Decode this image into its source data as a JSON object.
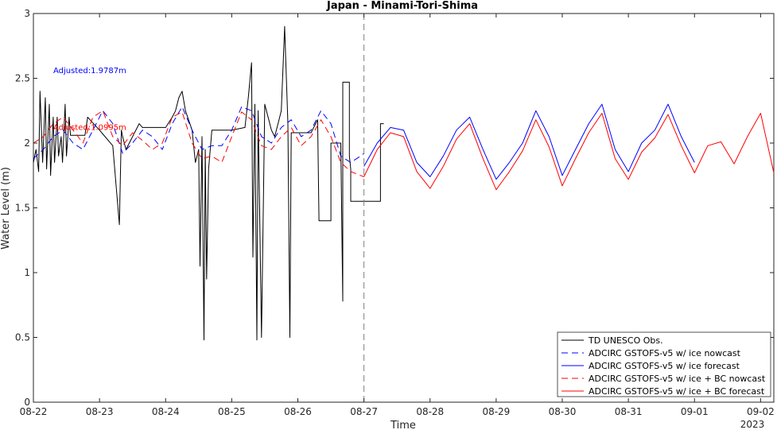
{
  "chart_data": {
    "type": "line",
    "title": "Japan - Minami-Tori-Shima",
    "xlabel": "Time",
    "ylabel": "Water Level (m)",
    "xlim": [
      0,
      11.2
    ],
    "ylim": [
      0,
      3
    ],
    "x_ticks": [
      {
        "x": 0,
        "label": "08-22"
      },
      {
        "x": 1,
        "label": "08-23"
      },
      {
        "x": 2,
        "label": "08-24"
      },
      {
        "x": 3,
        "label": "08-25"
      },
      {
        "x": 4,
        "label": "08-26"
      },
      {
        "x": 5,
        "label": "08-27"
      },
      {
        "x": 6,
        "label": "08-28"
      },
      {
        "x": 7,
        "label": "08-29"
      },
      {
        "x": 8,
        "label": "08-30"
      },
      {
        "x": 9,
        "label": "08-31"
      },
      {
        "x": 10,
        "label": "09-01"
      },
      {
        "x": 11,
        "label": "09-02"
      }
    ],
    "x_year_label": "2023",
    "y_ticks": [
      {
        "y": 0,
        "label": "0"
      },
      {
        "y": 0.5,
        "label": "0.5"
      },
      {
        "y": 1,
        "label": "1"
      },
      {
        "y": 1.5,
        "label": "1.5"
      },
      {
        "y": 2,
        "label": "2"
      },
      {
        "y": 2.5,
        "label": "2.5"
      },
      {
        "y": 3,
        "label": "3"
      }
    ],
    "nowcast_divider_x": 5,
    "annotations": [
      {
        "text": "Adjusted:1.9787m",
        "x": 0.3,
        "y": 2.54,
        "color": "#0000ff"
      },
      {
        "text": "Adjusted:1.0995m",
        "x": 0.3,
        "y": 2.1,
        "color": "#ff0000"
      }
    ],
    "legend_position": "bottom-right",
    "series": [
      {
        "name": "TD UNESCO Obs.",
        "color": "#000000",
        "dash": "solid",
        "x": [
          0,
          0.04,
          0.08,
          0.1,
          0.14,
          0.18,
          0.2,
          0.24,
          0.26,
          0.3,
          0.32,
          0.36,
          0.38,
          0.42,
          0.44,
          0.48,
          0.5,
          0.54,
          0.56,
          0.6,
          0.62,
          0.66,
          0.7,
          0.74,
          0.78,
          0.82,
          1.0,
          1.2,
          1.3,
          1.33,
          1.35,
          1.4,
          1.5,
          1.6,
          1.65,
          1.7,
          1.75,
          1.8,
          2.0,
          2.1,
          2.15,
          2.2,
          2.25,
          2.3,
          2.4,
          2.45,
          2.5,
          2.52,
          2.55,
          2.58,
          2.6,
          2.62,
          2.65,
          2.7,
          2.72,
          2.75,
          2.8,
          2.8,
          3.0,
          3.2,
          3.25,
          3.3,
          3.32,
          3.35,
          3.38,
          3.4,
          3.45,
          3.5,
          3.55,
          3.6,
          3.65,
          3.7,
          3.75,
          3.8,
          3.85,
          3.88,
          3.9,
          3.92,
          3.95,
          4.0,
          4.1,
          4.2,
          4.3,
          4.32,
          4.35,
          4.5,
          4.5,
          4.65,
          4.68,
          4.68,
          4.78,
          4.78,
          4.8,
          4.8,
          4.82,
          4.85,
          5.25,
          5.25,
          5.3
        ],
        "y": [
          1.85,
          1.95,
          1.78,
          2.4,
          1.85,
          2.35,
          1.8,
          2.3,
          1.75,
          2.2,
          1.85,
          2.2,
          1.9,
          2.05,
          1.85,
          2.3,
          1.9,
          2.2,
          2.06,
          2.06,
          2.06,
          2.06,
          2.06,
          2.06,
          2.06,
          2.2,
          2.1,
          1.98,
          1.37,
          2.1,
          2.05,
          1.95,
          2.05,
          2.15,
          2.12,
          2.12,
          2.12,
          2.12,
          2.12,
          2.2,
          2.25,
          2.35,
          2.4,
          2.25,
          2.1,
          1.85,
          1.95,
          1.05,
          2.05,
          0.48,
          1.95,
          0.95,
          1.8,
          2.1,
          2.1,
          2.1,
          2.1,
          2.1,
          2.1,
          2.12,
          2.35,
          2.62,
          1.12,
          2.3,
          0.48,
          2.25,
          0.5,
          2.3,
          2.2,
          2.1,
          2.05,
          2.15,
          2.25,
          2.9,
          2.15,
          0.5,
          2.08,
          2.08,
          2.08,
          2.08,
          2.08,
          2.08,
          2.18,
          1.4,
          1.4,
          1.4,
          2.0,
          2.0,
          0.78,
          2.47,
          2.47,
          1.9,
          1.8,
          1.55,
          1.55,
          1.55,
          1.55,
          2.15,
          2.15
        ]
      },
      {
        "name": "ADCIRC GSTOFS-v5 w/ ice nowcast",
        "color": "#0000ff",
        "dash": "8,5",
        "x": [
          0,
          0.15,
          0.3,
          0.45,
          0.6,
          0.75,
          0.9,
          1.05,
          1.2,
          1.35,
          1.5,
          1.65,
          1.8,
          1.95,
          2.1,
          2.25,
          2.4,
          2.55,
          2.7,
          2.85,
          3.0,
          3.15,
          3.3,
          3.45,
          3.6,
          3.75,
          3.9,
          4.05,
          4.2,
          4.35,
          4.5,
          4.65,
          4.8,
          4.95,
          5.0
        ],
        "y": [
          1.88,
          1.95,
          2.05,
          2.1,
          2.0,
          1.95,
          2.1,
          2.25,
          2.15,
          1.92,
          2.0,
          2.1,
          2.05,
          1.95,
          2.15,
          2.28,
          2.1,
          1.95,
          1.98,
          1.98,
          2.1,
          2.28,
          2.25,
          2.05,
          2.0,
          2.12,
          2.18,
          2.05,
          2.1,
          2.25,
          2.15,
          1.9,
          1.85,
          1.9,
          1.92
        ]
      },
      {
        "name": "ADCIRC GSTOFS-v5 w/ ice forecast",
        "color": "#0000ff",
        "dash": "solid",
        "x": [
          5.0,
          5.2,
          5.4,
          5.6,
          5.8,
          6.0,
          6.2,
          6.4,
          6.6,
          6.8,
          7.0,
          7.2,
          7.4,
          7.6,
          7.8,
          8.0,
          8.2,
          8.4,
          8.6,
          8.8,
          9.0,
          9.2,
          9.4,
          9.6,
          9.8,
          10.0
        ],
        "y": [
          1.82,
          2.0,
          2.12,
          2.1,
          1.85,
          1.74,
          1.9,
          2.1,
          2.2,
          1.95,
          1.72,
          1.85,
          2.0,
          2.25,
          2.05,
          1.75,
          1.95,
          2.15,
          2.3,
          1.95,
          1.78,
          2.0,
          2.1,
          2.3,
          2.05,
          1.85
        ]
      },
      {
        "name": "ADCIRC GSTOFS-v5 w/ ice + BC nowcast",
        "color": "#ff0000",
        "dash": "8,5",
        "x": [
          0,
          0.15,
          0.3,
          0.45,
          0.6,
          0.75,
          0.9,
          1.05,
          1.2,
          1.35,
          1.5,
          1.65,
          1.8,
          1.95,
          2.1,
          2.25,
          2.4,
          2.55,
          2.7,
          2.85,
          3.0,
          3.15,
          3.3,
          3.45,
          3.6,
          3.75,
          3.9,
          4.05,
          4.2,
          4.35,
          4.5,
          4.65,
          4.8,
          4.95,
          5.0
        ],
        "y": [
          2.0,
          2.05,
          2.15,
          2.2,
          2.1,
          2.0,
          2.2,
          2.25,
          2.05,
          1.98,
          2.08,
          2.02,
          1.95,
          2.0,
          2.2,
          2.24,
          2.0,
          1.88,
          1.9,
          1.85,
          2.05,
          2.24,
          2.18,
          1.98,
          1.95,
          2.05,
          2.12,
          1.98,
          2.05,
          2.18,
          2.05,
          1.85,
          1.78,
          1.75,
          1.74
        ]
      },
      {
        "name": "ADCIRC GSTOFS-v5 w/ ice + BC forecast",
        "color": "#ff0000",
        "dash": "solid",
        "x": [
          5.0,
          5.2,
          5.4,
          5.6,
          5.8,
          6.0,
          6.2,
          6.4,
          6.6,
          6.8,
          7.0,
          7.2,
          7.4,
          7.6,
          7.8,
          8.0,
          8.2,
          8.4,
          8.6,
          8.8,
          9.0,
          9.2,
          9.4,
          9.6,
          9.8,
          10.0,
          10.2,
          10.4,
          10.6,
          10.8,
          11.0,
          11.2
        ],
        "y": [
          1.74,
          1.95,
          2.08,
          2.05,
          1.78,
          1.65,
          1.82,
          2.03,
          2.15,
          1.88,
          1.64,
          1.78,
          1.94,
          2.18,
          1.97,
          1.67,
          1.88,
          2.08,
          2.23,
          1.88,
          1.72,
          1.93,
          2.04,
          2.22,
          1.98,
          1.77,
          1.98,
          2.01,
          1.84,
          2.05,
          2.23,
          1.77
        ]
      }
    ]
  }
}
